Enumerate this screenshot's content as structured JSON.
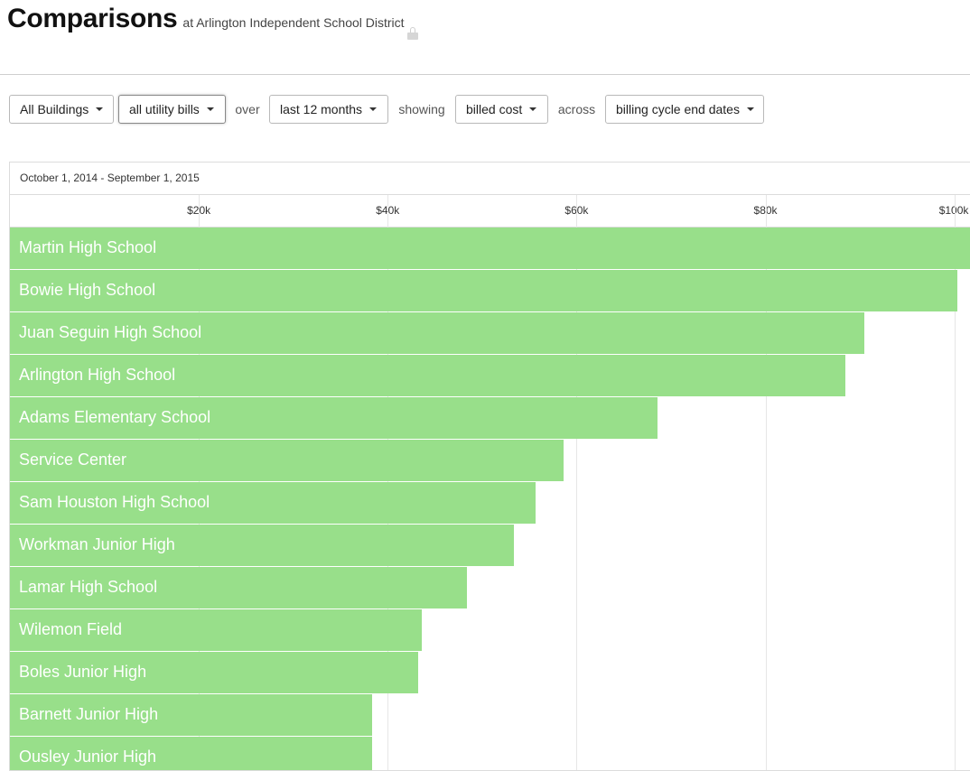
{
  "header": {
    "title": "Comparisons",
    "subtitle": "at Arlington Independent School District"
  },
  "filters": {
    "buildings": "All Buildings",
    "bills": "all utility bills",
    "over_text": "over",
    "period": "last 12 months",
    "showing_text": "showing",
    "metric": "billed cost",
    "across_text": "across",
    "dates": "billing cycle end dates"
  },
  "chart_data": {
    "type": "bar",
    "orientation": "horizontal",
    "title": "October 1, 2014 - September 1, 2015",
    "xlim": [
      0,
      101750
    ],
    "ticks": [
      {
        "value": 20000,
        "label": "$20k"
      },
      {
        "value": 40000,
        "label": "$40k"
      },
      {
        "value": 60000,
        "label": "$60k"
      },
      {
        "value": 80000,
        "label": "$80k"
      },
      {
        "value": 100000,
        "label": "$100k"
      }
    ],
    "grid": true,
    "color": "#98df8a",
    "categories": [
      "Martin High School",
      "Bowie High School",
      "Juan Seguin High School",
      "Arlington High School",
      "Adams Elementary School",
      "Service Center",
      "Sam Houston High School",
      "Workman Junior High",
      "Lamar High School",
      "Wilemon Field",
      "Boles Junior High",
      "Barnett Junior High",
      "Ousley Junior High"
    ],
    "values": [
      101800,
      100300,
      90500,
      88500,
      68600,
      58600,
      55700,
      53400,
      48400,
      43600,
      43200,
      38300,
      38300
    ]
  }
}
